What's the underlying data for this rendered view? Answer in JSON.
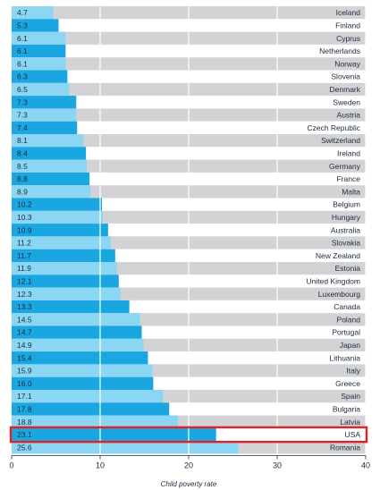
{
  "chart_data": {
    "type": "bar",
    "orientation": "horizontal",
    "title": "",
    "xlabel": "Child poverty rate",
    "ylabel": "",
    "xlim": [
      0,
      40
    ],
    "xticks": [
      0,
      10,
      20,
      30,
      40
    ],
    "grid": true,
    "highlight_category": "USA",
    "colors": {
      "bar_dark": "#1aa6e0",
      "bar_light": "#8ad6f3",
      "track_light": "#d3d3d6",
      "track_white": "#ffffff",
      "highlight_border": "#e32129",
      "text": "#1b2c3a"
    },
    "categories": [
      "Iceland",
      "Finland",
      "Cyprus",
      "Netherlands",
      "Norway",
      "Slovenia",
      "Denmark",
      "Sweden",
      "Austria",
      "Czech Republic",
      "Switzerland",
      "Ireland",
      "Germany",
      "France",
      "Malta",
      "Belgium",
      "Hungary",
      "Australia",
      "Slovakia",
      "New Zealand",
      "Estonia",
      "United Kingdom",
      "Luxembourg",
      "Canada",
      "Poland",
      "Portugal",
      "Japan",
      "Lithuania",
      "Italy",
      "Greece",
      "Spain",
      "Bulgaria",
      "Latvia",
      "USA",
      "Romania"
    ],
    "values": [
      4.7,
      5.3,
      6.1,
      6.1,
      6.1,
      6.3,
      6.5,
      7.3,
      7.3,
      7.4,
      8.1,
      8.4,
      8.5,
      8.8,
      8.9,
      10.2,
      10.3,
      10.9,
      11.2,
      11.7,
      11.9,
      12.1,
      12.3,
      13.3,
      14.5,
      14.7,
      14.9,
      15.4,
      15.9,
      16.0,
      17.1,
      17.8,
      18.8,
      23.1,
      25.6
    ],
    "value_labels": [
      "4.7",
      "5.3",
      "6.1",
      "6.1",
      "6.1",
      "6.3",
      "6.5",
      "7.3",
      "7.3",
      "7.4",
      "8.1",
      "8.4",
      "8.5",
      "8.8",
      "8.9",
      "10.2",
      "10.3",
      "10.9",
      "11.2",
      "11.7",
      "11.9",
      "12.1",
      "12.3",
      "13.3",
      "14.5",
      "14.7",
      "14.9",
      "15.4",
      "15.9",
      "16.0",
      "17.1",
      "17.8",
      "18.8",
      "23.1",
      "25.6"
    ]
  }
}
